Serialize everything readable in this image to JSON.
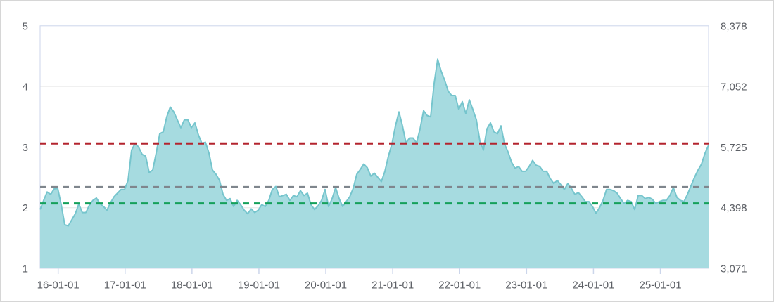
{
  "chart_data": {
    "type": "area",
    "title": "",
    "xlabel": "",
    "ylabel_left": "",
    "ylabel_right": "",
    "x_range_years": [
      2015.73,
      2025.72
    ],
    "ylim_left": [
      1,
      5
    ],
    "ylim_right": [
      3071,
      8378
    ],
    "grid": "horizontal",
    "legend_position": "none",
    "y_ticks": [
      {
        "value": 5,
        "left": "5",
        "right": "8,378"
      },
      {
        "value": 4,
        "left": "4",
        "right": "7,052"
      },
      {
        "value": 3,
        "left": "3",
        "right": "5,725"
      },
      {
        "value": 2,
        "left": "2",
        "right": "4,398"
      },
      {
        "value": 1,
        "left": "1",
        "right": "3,071"
      }
    ],
    "x_ticks": [
      {
        "year": 2016,
        "label": "16-01-01"
      },
      {
        "year": 2017,
        "label": "17-01-01"
      },
      {
        "year": 2018,
        "label": "18-01-01"
      },
      {
        "year": 2019,
        "label": "19-01-01"
      },
      {
        "year": 2020,
        "label": "20-01-01"
      },
      {
        "year": 2021,
        "label": "21-01-01"
      },
      {
        "year": 2022,
        "label": "22-01-01"
      },
      {
        "year": 2023,
        "label": "23-01-01"
      },
      {
        "year": 2024,
        "label": "24-01-01"
      },
      {
        "year": 2025,
        "label": "25-01-01"
      }
    ],
    "series": [
      {
        "name": "ratio-area-series",
        "values": [
          1.97,
          2.12,
          2.26,
          2.22,
          2.31,
          2.32,
          2.05,
          1.72,
          1.7,
          1.8,
          1.9,
          2.06,
          1.92,
          1.92,
          2.04,
          2.12,
          2.16,
          2.07,
          2.02,
          1.96,
          2.08,
          2.18,
          2.24,
          2.3,
          2.3,
          2.45,
          2.95,
          3.06,
          3.0,
          2.88,
          2.85,
          2.58,
          2.62,
          2.9,
          3.22,
          3.25,
          3.5,
          3.66,
          3.58,
          3.45,
          3.32,
          3.45,
          3.45,
          3.32,
          3.4,
          3.2,
          3.06,
          3.08,
          2.9,
          2.62,
          2.55,
          2.45,
          2.22,
          2.12,
          2.15,
          2.02,
          2.12,
          2.05,
          1.96,
          1.9,
          1.98,
          1.92,
          1.96,
          2.05,
          2.02,
          2.12,
          2.3,
          2.35,
          2.18,
          2.2,
          2.22,
          2.12,
          2.2,
          2.18,
          2.28,
          2.2,
          2.24,
          2.05,
          1.97,
          2.03,
          2.12,
          2.3,
          2.02,
          2.15,
          2.33,
          2.15,
          2.02,
          2.1,
          2.18,
          2.32,
          2.55,
          2.63,
          2.72,
          2.66,
          2.52,
          2.57,
          2.5,
          2.43,
          2.6,
          2.85,
          3.05,
          3.35,
          3.58,
          3.35,
          3.07,
          3.15,
          3.15,
          3.07,
          3.3,
          3.6,
          3.52,
          3.5,
          4.05,
          4.45,
          4.25,
          4.1,
          3.92,
          3.85,
          3.85,
          3.62,
          3.75,
          3.55,
          3.78,
          3.62,
          3.45,
          3.1,
          2.95,
          3.3,
          3.4,
          3.25,
          3.22,
          3.35,
          3.05,
          2.92,
          2.75,
          2.65,
          2.68,
          2.6,
          2.6,
          2.68,
          2.78,
          2.7,
          2.68,
          2.6,
          2.6,
          2.48,
          2.4,
          2.45,
          2.38,
          2.3,
          2.4,
          2.32,
          2.22,
          2.25,
          2.18,
          2.1,
          2.1,
          2.02,
          1.91,
          2.0,
          2.12,
          2.3,
          2.3,
          2.28,
          2.24,
          2.15,
          2.07,
          2.12,
          2.1,
          1.97,
          2.2,
          2.2,
          2.15,
          2.17,
          2.14,
          2.07,
          2.1,
          2.12,
          2.12,
          2.2,
          2.33,
          2.17,
          2.12,
          2.1,
          2.22,
          2.36,
          2.5,
          2.62,
          2.72,
          2.9,
          3.03
        ]
      }
    ],
    "reference_lines": [
      {
        "name": "upper-reference-line",
        "value": 3.06,
        "color": "#b3242e",
        "style": "dashed"
      },
      {
        "name": "middle-reference-line",
        "value": 2.34,
        "color": "#7f868d",
        "style": "dashed"
      },
      {
        "name": "lower-reference-line",
        "value": 2.07,
        "color": "#14a05a",
        "style": "dashed"
      }
    ],
    "colors": {
      "area_fill": "#a6dbe0",
      "area_line": "#76c5cd",
      "gridline": "#e6e6e6",
      "plot_border": "#ccd6eb",
      "tick": "#ccd6eb",
      "axis_text": "#5d6066"
    }
  }
}
